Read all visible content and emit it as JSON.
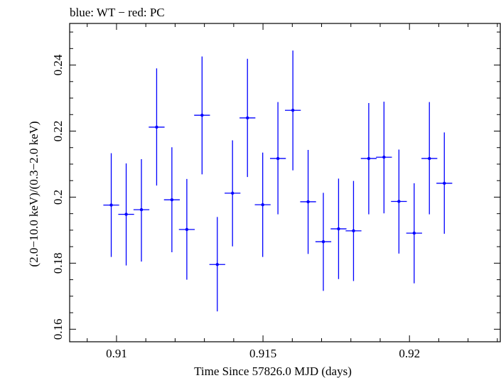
{
  "chart_data": {
    "type": "scatter",
    "title": "blue: WT − red: PC",
    "xlabel": "Time Since 57826.0 MJD (days)",
    "ylabel": "(2.0−10.0 keV)/(0.3−2.0 keV)",
    "xlim": [
      0.9084,
      0.9231
    ],
    "ylim": [
      0.1562,
      0.2526
    ],
    "x_ticks": [
      0.91,
      0.915,
      0.92
    ],
    "x_tick_labels": [
      "0.91",
      "0.915",
      "0.92"
    ],
    "y_ticks": [
      0.16,
      0.18,
      0.2,
      0.22,
      0.24
    ],
    "y_tick_labels": [
      "0.16",
      "0.18",
      "0.2",
      "0.22",
      "0.24"
    ],
    "grid": false,
    "series": [
      {
        "color": "#0000ff",
        "points": [
          {
            "x": 0.90982,
            "xerr": 0.00027,
            "y": 0.1976,
            "ylo": 0.1819,
            "yhi": 0.2133
          },
          {
            "x": 0.91033,
            "xerr": 0.00027,
            "y": 0.1948,
            "ylo": 0.1793,
            "yhi": 0.2102
          },
          {
            "x": 0.91085,
            "xerr": 0.00027,
            "y": 0.1962,
            "ylo": 0.1805,
            "yhi": 0.2115
          },
          {
            "x": 0.91137,
            "xerr": 0.00027,
            "y": 0.2212,
            "ylo": 0.2035,
            "yhi": 0.239
          },
          {
            "x": 0.91189,
            "xerr": 0.00027,
            "y": 0.1992,
            "ylo": 0.1833,
            "yhi": 0.2151
          },
          {
            "x": 0.9124,
            "xerr": 0.00027,
            "y": 0.1902,
            "ylo": 0.175,
            "yhi": 0.2055
          },
          {
            "x": 0.91292,
            "xerr": 0.00027,
            "y": 0.2248,
            "ylo": 0.2069,
            "yhi": 0.2426
          },
          {
            "x": 0.91344,
            "xerr": 0.00027,
            "y": 0.1796,
            "ylo": 0.1654,
            "yhi": 0.194
          },
          {
            "x": 0.91396,
            "xerr": 0.00027,
            "y": 0.2012,
            "ylo": 0.1851,
            "yhi": 0.2172
          },
          {
            "x": 0.91447,
            "xerr": 0.00027,
            "y": 0.224,
            "ylo": 0.2061,
            "yhi": 0.2419
          },
          {
            "x": 0.91499,
            "xerr": 0.00027,
            "y": 0.1977,
            "ylo": 0.1819,
            "yhi": 0.2135
          },
          {
            "x": 0.91551,
            "xerr": 0.00027,
            "y": 0.2117,
            "ylo": 0.1948,
            "yhi": 0.2288
          },
          {
            "x": 0.91602,
            "xerr": 0.00027,
            "y": 0.2263,
            "ylo": 0.2081,
            "yhi": 0.2444
          },
          {
            "x": 0.91654,
            "xerr": 0.00027,
            "y": 0.1986,
            "ylo": 0.1828,
            "yhi": 0.2143
          },
          {
            "x": 0.91706,
            "xerr": 0.00027,
            "y": 0.1865,
            "ylo": 0.1716,
            "yhi": 0.2013
          },
          {
            "x": 0.91758,
            "xerr": 0.00027,
            "y": 0.1904,
            "ylo": 0.1752,
            "yhi": 0.2056
          },
          {
            "x": 0.91809,
            "xerr": 0.00027,
            "y": 0.1898,
            "ylo": 0.1746,
            "yhi": 0.2049
          },
          {
            "x": 0.91861,
            "xerr": 0.00027,
            "y": 0.2117,
            "ylo": 0.1948,
            "yhi": 0.2285
          },
          {
            "x": 0.91913,
            "xerr": 0.00027,
            "y": 0.2121,
            "ylo": 0.1951,
            "yhi": 0.2289
          },
          {
            "x": 0.91964,
            "xerr": 0.00027,
            "y": 0.1987,
            "ylo": 0.1829,
            "yhi": 0.2144
          },
          {
            "x": 0.92016,
            "xerr": 0.00027,
            "y": 0.1891,
            "ylo": 0.1739,
            "yhi": 0.2042
          },
          {
            "x": 0.92068,
            "xerr": 0.00027,
            "y": 0.2117,
            "ylo": 0.1948,
            "yhi": 0.2288
          },
          {
            "x": 0.92119,
            "xerr": 0.00027,
            "y": 0.2042,
            "ylo": 0.1889,
            "yhi": 0.2196
          }
        ]
      }
    ]
  }
}
